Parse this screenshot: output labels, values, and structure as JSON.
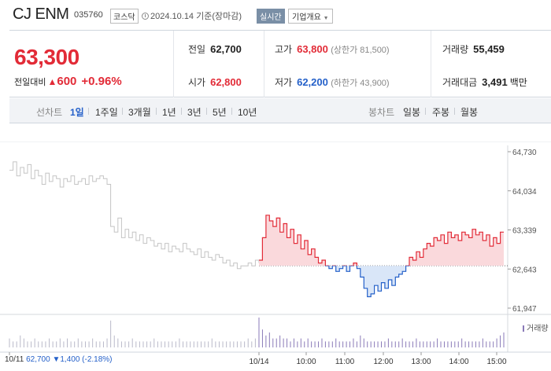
{
  "header": {
    "name": "CJ ENM",
    "code": "035760",
    "market": "코스닥",
    "as_of": "2024.10.14 기준(장마감)",
    "realtime_label": "실시간",
    "company_label": "기업개요"
  },
  "quote": {
    "price": "63,300",
    "change_label": "전일대비",
    "change_amount": "600",
    "change_pct": "+0.96%",
    "prev_label": "전일",
    "prev": "62,700",
    "open_label": "시가",
    "open": "62,800",
    "high_label": "고가",
    "high": "63,800",
    "upper_limit": "(상한가 81,500)",
    "low_label": "저가",
    "low": "62,200",
    "lower_limit": "(하한가 43,900)",
    "volume_label": "거래량",
    "volume": "55,459",
    "value_label": "거래대금",
    "value": "3,491",
    "value_unit": "백만"
  },
  "tabs": {
    "line_label": "선차트",
    "periods": [
      "1일",
      "1주일",
      "3개월",
      "1년",
      "3년",
      "5년",
      "10년"
    ],
    "candle_label": "봉차트",
    "candles": [
      "일봉",
      "주봉",
      "월봉"
    ]
  },
  "chart_data": {
    "type": "line",
    "y_ticks": [
      "64,730",
      "64,034",
      "63,339",
      "62,643",
      "61,947"
    ],
    "ylim": [
      61947,
      64730
    ],
    "x_ticks": [
      "10/11",
      "10/14",
      "10:00",
      "11:00",
      "12:00",
      "13:00",
      "14:00",
      "15:00"
    ],
    "baseline": 62700,
    "prev_day_series": [
      64400,
      64550,
      64300,
      64450,
      64350,
      64500,
      64250,
      64400,
      64300,
      64150,
      64350,
      64200,
      64300,
      64250,
      64100,
      64250,
      64200,
      64300,
      64150,
      64200,
      64250,
      64150,
      64300,
      64200,
      64250,
      64300,
      64250,
      64150,
      63400,
      63300,
      63550,
      63200,
      63350,
      63200,
      63300,
      63150,
      63250,
      63100,
      63200,
      63150,
      63050,
      63100,
      63000,
      63100,
      62950,
      63050,
      63000,
      62950,
      63100,
      63000,
      62950,
      62900,
      63000,
      62850,
      62950,
      62850,
      62800,
      62900,
      62850,
      62750,
      62800,
      62700,
      62750,
      62650,
      62700,
      62700,
      62750,
      62700,
      62800,
      62750
    ],
    "today_series": [
      62800,
      63200,
      63600,
      63500,
      63400,
      63550,
      63300,
      63450,
      63200,
      63350,
      63100,
      63250,
      63000,
      63150,
      62900,
      63000,
      62850,
      62750,
      62800,
      62700,
      62650,
      62700,
      62600,
      62650,
      62700,
      62600,
      62700,
      62750,
      62650,
      62500,
      62300,
      62150,
      62200,
      62350,
      62250,
      62400,
      62300,
      62450,
      62350,
      62500,
      62550,
      62600,
      62700,
      62850,
      62800,
      62950,
      62850,
      63000,
      63100,
      63050,
      63200,
      63150,
      63250,
      63100,
      63300,
      63200,
      63250,
      63150,
      63300,
      63250,
      63200,
      63350,
      63250,
      63300,
      63150,
      63250,
      63050,
      63200,
      63100,
      63300,
      63300
    ],
    "prev_day_volume": [
      3,
      2,
      2,
      4,
      3,
      2,
      2,
      3,
      2,
      2,
      2,
      3,
      2,
      2,
      3,
      2,
      3,
      2,
      2,
      3,
      2,
      2,
      2,
      3,
      2,
      2,
      2,
      3,
      9,
      4,
      3,
      2,
      2,
      2,
      3,
      2,
      2,
      2,
      2,
      2,
      3,
      2,
      2,
      2,
      2,
      2,
      2,
      3,
      2,
      2,
      2,
      2,
      2,
      2,
      2,
      2,
      3,
      2,
      2,
      2,
      2,
      2,
      2,
      2,
      2,
      2,
      3,
      2,
      3,
      2
    ],
    "today_volume": [
      10,
      6,
      4,
      5,
      3,
      3,
      4,
      3,
      3,
      2,
      3,
      2,
      3,
      2,
      3,
      2,
      2,
      2,
      3,
      2,
      2,
      2,
      3,
      2,
      2,
      2,
      2,
      3,
      2,
      4,
      3,
      2,
      2,
      2,
      2,
      2,
      2,
      3,
      2,
      2,
      2,
      3,
      2,
      2,
      2,
      3,
      2,
      2,
      2,
      2,
      2,
      3,
      2,
      2,
      2,
      2,
      2,
      2,
      3,
      2,
      2,
      2,
      2,
      2,
      3,
      2,
      2,
      2,
      3,
      4,
      5
    ],
    "footer": {
      "date": "10/11",
      "close": "62,700",
      "change": "▼1,400",
      "pct": "(-2.18%)"
    },
    "volume_legend": "거래량",
    "colors": {
      "up": "#e22b37",
      "down": "#2460c9",
      "prev": "#c4c4c4",
      "up_fill": "#fad9dc",
      "down_fill": "#d9e6f8",
      "volume": "#8a7ab8"
    }
  }
}
